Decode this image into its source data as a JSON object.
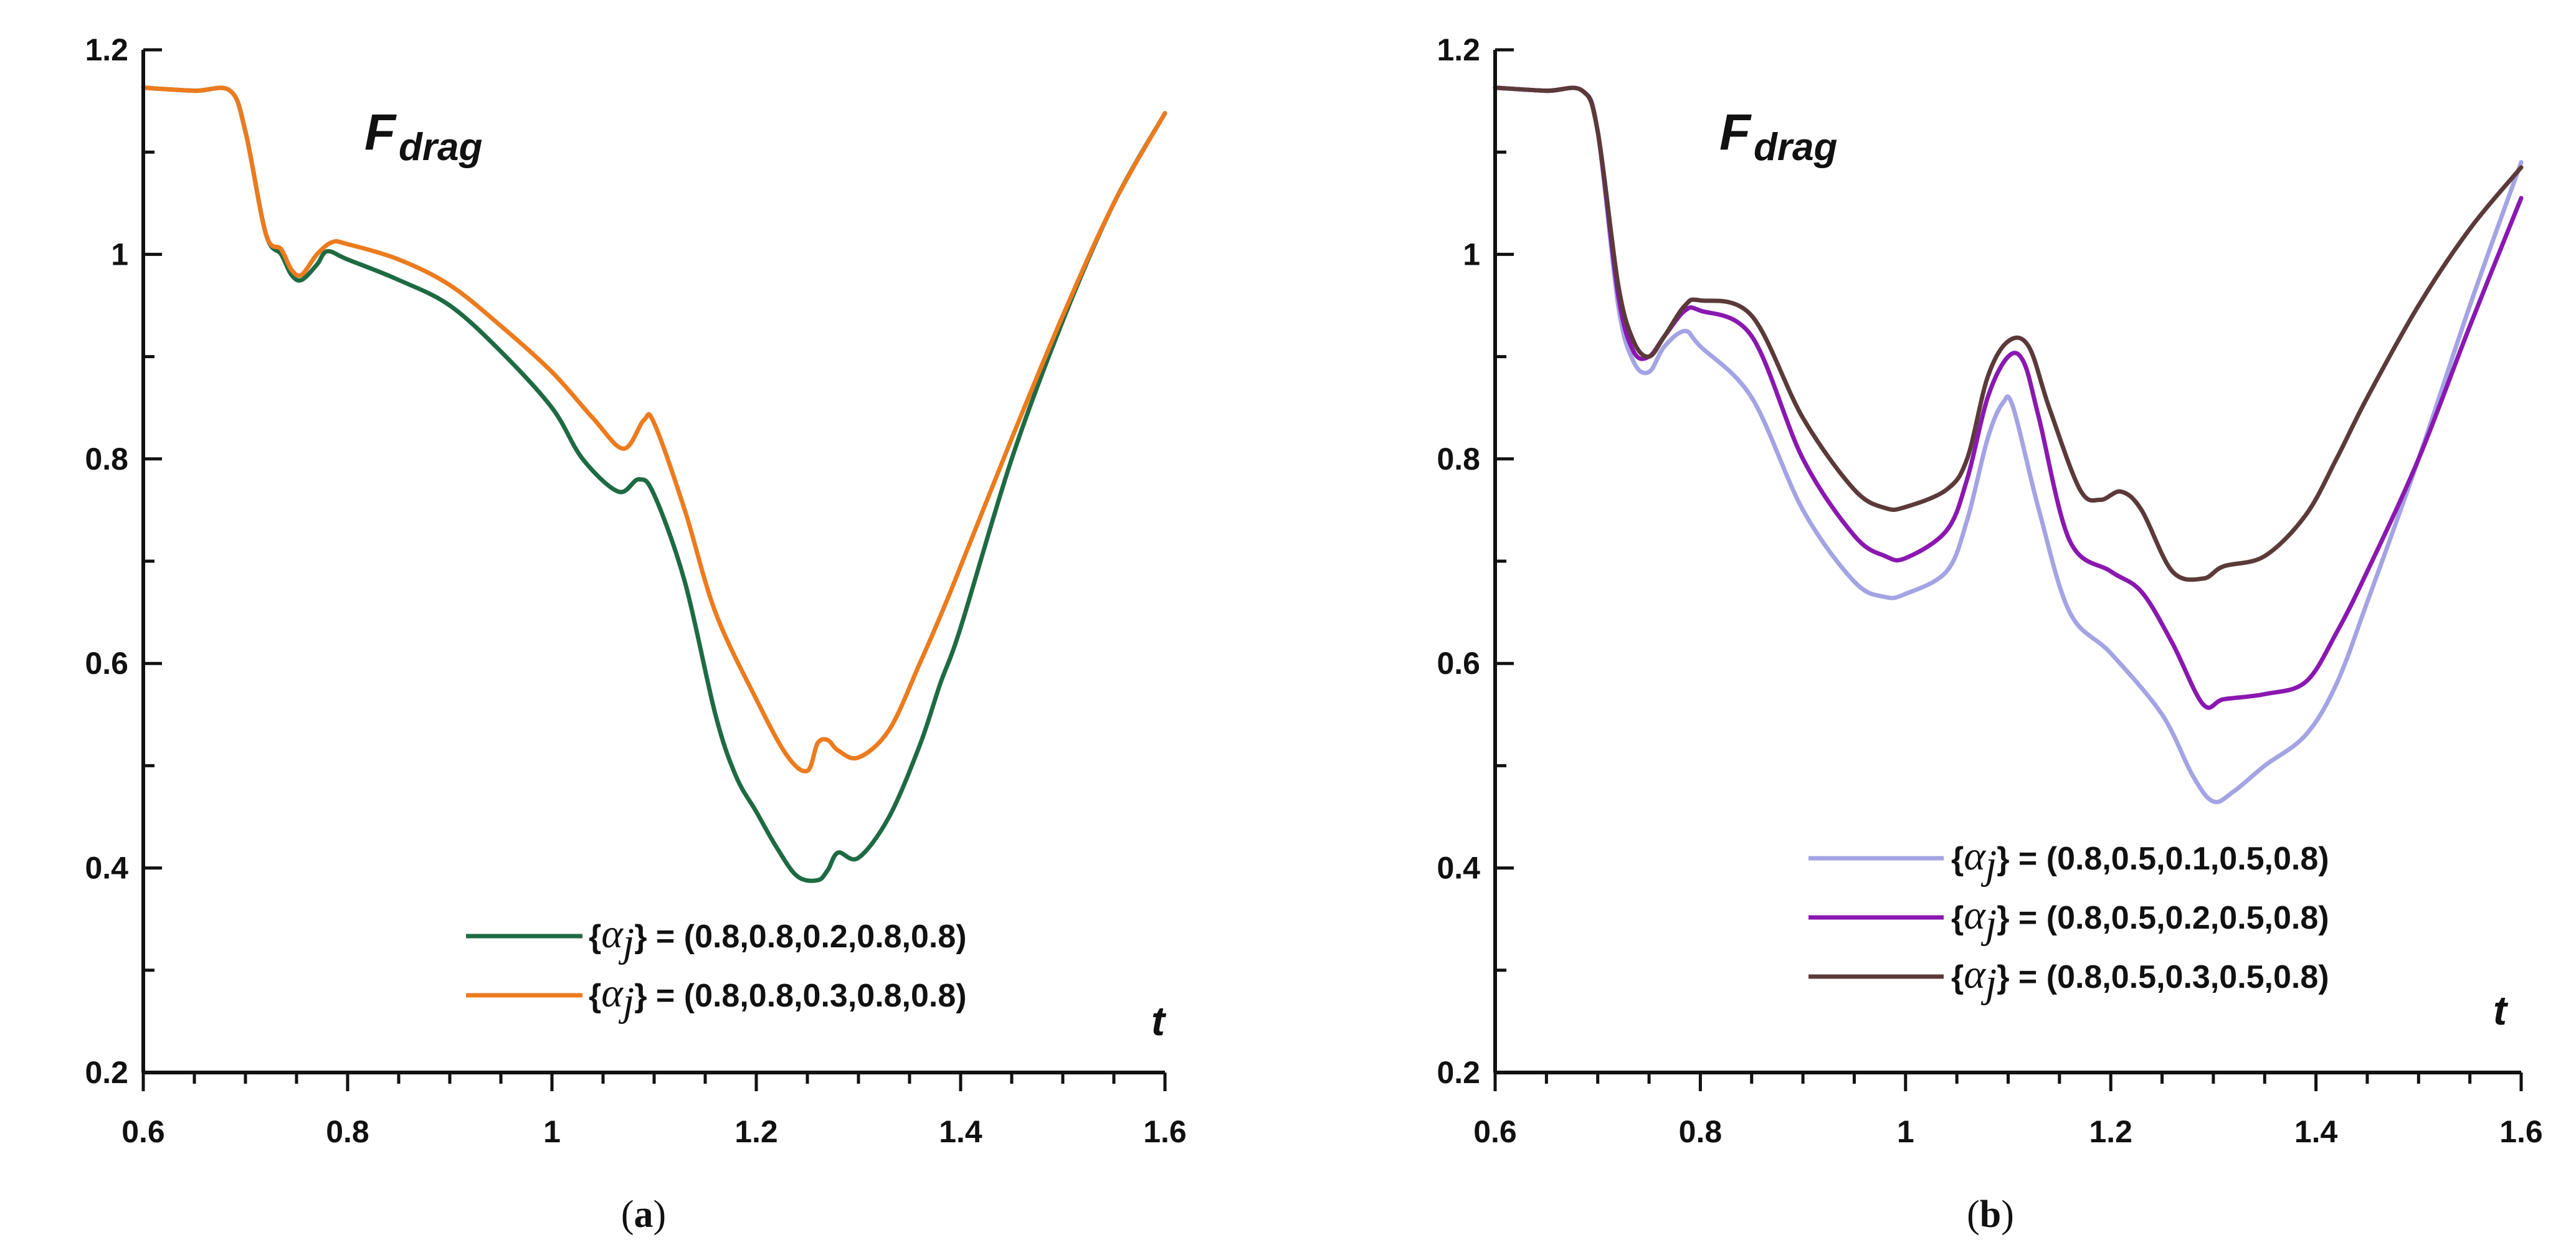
{
  "chart_data": [
    {
      "panel": "(a)",
      "panel_letter": "a",
      "type": "line",
      "title_main": "F",
      "title_sub": "drag",
      "xlabel": "t",
      "xlim": [
        0.6,
        1.6
      ],
      "ylim": [
        0.2,
        1.2
      ],
      "xticks": [
        "0.6",
        "0.8",
        "1",
        "1.2",
        "1.4",
        "1.6"
      ],
      "yticks": [
        "0.2",
        "0.4",
        "0.6",
        "0.8",
        "1",
        "1.2"
      ],
      "series": [
        {
          "name_prefix": "{",
          "name_symbol": "α",
          "name_index": "j",
          "name_suffix": "} = (0.8,0.8,0.2,0.8,0.8)",
          "color": "#1e6b43",
          "points": [
            [
              0.6,
              1.163
            ],
            [
              0.65,
              1.16
            ],
            [
              0.685,
              1.16
            ],
            [
              0.7,
              1.12
            ],
            [
              0.72,
              1.02
            ],
            [
              0.735,
              1.0
            ],
            [
              0.745,
              0.98
            ],
            [
              0.755,
              0.975
            ],
            [
              0.77,
              0.99
            ],
            [
              0.78,
              1.003
            ],
            [
              0.8,
              0.995
            ],
            [
              0.85,
              0.975
            ],
            [
              0.9,
              0.95
            ],
            [
              0.95,
              0.905
            ],
            [
              1.0,
              0.85
            ],
            [
              1.03,
              0.8
            ],
            [
              1.065,
              0.768
            ],
            [
              1.085,
              0.78
            ],
            [
              1.1,
              0.765
            ],
            [
              1.13,
              0.68
            ],
            [
              1.16,
              0.55
            ],
            [
              1.18,
              0.49
            ],
            [
              1.2,
              0.455
            ],
            [
              1.22,
              0.42
            ],
            [
              1.24,
              0.392
            ],
            [
              1.26,
              0.388
            ],
            [
              1.27,
              0.398
            ],
            [
              1.28,
              0.415
            ],
            [
              1.3,
              0.41
            ],
            [
              1.33,
              0.45
            ],
            [
              1.36,
              0.52
            ],
            [
              1.38,
              0.58
            ],
            [
              1.4,
              0.635
            ],
            [
              1.45,
              0.8
            ],
            [
              1.5,
              0.935
            ],
            [
              1.55,
              1.05
            ],
            [
              1.6,
              1.138
            ]
          ]
        },
        {
          "name_prefix": "{",
          "name_symbol": "α",
          "name_index": "j",
          "name_suffix": "} = (0.8,0.8,0.3,0.8,0.8)",
          "color": "#ec7b1e",
          "points": [
            [
              0.6,
              1.163
            ],
            [
              0.65,
              1.16
            ],
            [
              0.685,
              1.16
            ],
            [
              0.7,
              1.12
            ],
            [
              0.72,
              1.02
            ],
            [
              0.735,
              1.005
            ],
            [
              0.745,
              0.985
            ],
            [
              0.755,
              0.98
            ],
            [
              0.77,
              1.0
            ],
            [
              0.785,
              1.012
            ],
            [
              0.8,
              1.01
            ],
            [
              0.85,
              0.995
            ],
            [
              0.9,
              0.97
            ],
            [
              0.95,
              0.93
            ],
            [
              1.0,
              0.885
            ],
            [
              1.04,
              0.84
            ],
            [
              1.07,
              0.81
            ],
            [
              1.09,
              0.838
            ],
            [
              1.1,
              0.835
            ],
            [
              1.13,
              0.75
            ],
            [
              1.16,
              0.65
            ],
            [
              1.2,
              0.565
            ],
            [
              1.23,
              0.51
            ],
            [
              1.25,
              0.495
            ],
            [
              1.26,
              0.522
            ],
            [
              1.27,
              0.525
            ],
            [
              1.28,
              0.515
            ],
            [
              1.3,
              0.508
            ],
            [
              1.33,
              0.535
            ],
            [
              1.36,
              0.6
            ],
            [
              1.39,
              0.67
            ],
            [
              1.45,
              0.82
            ],
            [
              1.5,
              0.94
            ],
            [
              1.55,
              1.05
            ],
            [
              1.6,
              1.138
            ]
          ]
        }
      ]
    },
    {
      "panel": "(b)",
      "panel_letter": "b",
      "type": "line",
      "title_main": "F",
      "title_sub": "drag",
      "xlabel": "t",
      "xlim": [
        0.6,
        1.6
      ],
      "ylim": [
        0.2,
        1.2
      ],
      "xticks": [
        "0.6",
        "0.8",
        "1",
        "1.2",
        "1.4",
        "1.6"
      ],
      "yticks": [
        "0.2",
        "0.4",
        "0.6",
        "0.8",
        "1",
        "1.2"
      ],
      "series": [
        {
          "name_prefix": "{",
          "name_symbol": "α",
          "name_index": "j",
          "name_suffix": "} = (0.8,0.5,0.1,0.5,0.8)",
          "color": "#a4a3e4",
          "points": [
            [
              0.6,
              1.163
            ],
            [
              0.65,
              1.16
            ],
            [
              0.685,
              1.16
            ],
            [
              0.7,
              1.12
            ],
            [
              0.72,
              0.95
            ],
            [
              0.735,
              0.895
            ],
            [
              0.75,
              0.885
            ],
            [
              0.765,
              0.91
            ],
            [
              0.785,
              0.925
            ],
            [
              0.8,
              0.91
            ],
            [
              0.85,
              0.86
            ],
            [
              0.9,
              0.75
            ],
            [
              0.95,
              0.68
            ],
            [
              0.98,
              0.665
            ],
            [
              1.0,
              0.668
            ],
            [
              1.04,
              0.69
            ],
            [
              1.06,
              0.74
            ],
            [
              1.08,
              0.82
            ],
            [
              1.095,
              0.855
            ],
            [
              1.105,
              0.85
            ],
            [
              1.13,
              0.75
            ],
            [
              1.16,
              0.65
            ],
            [
              1.2,
              0.61
            ],
            [
              1.25,
              0.55
            ],
            [
              1.28,
              0.49
            ],
            [
              1.3,
              0.465
            ],
            [
              1.32,
              0.475
            ],
            [
              1.35,
              0.5
            ],
            [
              1.39,
              0.53
            ],
            [
              1.42,
              0.58
            ],
            [
              1.45,
              0.66
            ],
            [
              1.5,
              0.8
            ],
            [
              1.55,
              0.95
            ],
            [
              1.6,
              1.09
            ]
          ]
        },
        {
          "name_prefix": "{",
          "name_symbol": "α",
          "name_index": "j",
          "name_suffix": "} = (0.8,0.5,0.2,0.5,0.8)",
          "color": "#8a18b0",
          "points": [
            [
              0.6,
              1.163
            ],
            [
              0.65,
              1.16
            ],
            [
              0.685,
              1.16
            ],
            [
              0.7,
              1.12
            ],
            [
              0.72,
              0.96
            ],
            [
              0.735,
              0.905
            ],
            [
              0.75,
              0.9
            ],
            [
              0.765,
              0.92
            ],
            [
              0.785,
              0.945
            ],
            [
              0.8,
              0.945
            ],
            [
              0.85,
              0.92
            ],
            [
              0.9,
              0.8
            ],
            [
              0.95,
              0.725
            ],
            [
              0.98,
              0.705
            ],
            [
              1.0,
              0.703
            ],
            [
              1.04,
              0.73
            ],
            [
              1.06,
              0.78
            ],
            [
              1.08,
              0.86
            ],
            [
              1.1,
              0.9
            ],
            [
              1.115,
              0.895
            ],
            [
              1.13,
              0.84
            ],
            [
              1.16,
              0.72
            ],
            [
              1.2,
              0.69
            ],
            [
              1.23,
              0.67
            ],
            [
              1.26,
              0.62
            ],
            [
              1.29,
              0.56
            ],
            [
              1.31,
              0.565
            ],
            [
              1.35,
              0.57
            ],
            [
              1.39,
              0.582
            ],
            [
              1.42,
              0.63
            ],
            [
              1.45,
              0.69
            ],
            [
              1.5,
              0.8
            ],
            [
              1.55,
              0.93
            ],
            [
              1.6,
              1.055
            ]
          ]
        },
        {
          "name_prefix": "{",
          "name_symbol": "α",
          "name_index": "j",
          "name_suffix": "} = (0.8,0.5,0.3,0.5,0.8)",
          "color": "#5c3a3a",
          "points": [
            [
              0.6,
              1.163
            ],
            [
              0.65,
              1.16
            ],
            [
              0.685,
              1.16
            ],
            [
              0.7,
              1.12
            ],
            [
              0.72,
              0.97
            ],
            [
              0.735,
              0.915
            ],
            [
              0.75,
              0.9
            ],
            [
              0.765,
              0.92
            ],
            [
              0.785,
              0.95
            ],
            [
              0.8,
              0.955
            ],
            [
              0.85,
              0.94
            ],
            [
              0.9,
              0.84
            ],
            [
              0.95,
              0.77
            ],
            [
              0.98,
              0.752
            ],
            [
              1.0,
              0.753
            ],
            [
              1.04,
              0.77
            ],
            [
              1.06,
              0.8
            ],
            [
              1.08,
              0.88
            ],
            [
              1.1,
              0.915
            ],
            [
              1.12,
              0.91
            ],
            [
              1.14,
              0.85
            ],
            [
              1.17,
              0.77
            ],
            [
              1.19,
              0.76
            ],
            [
              1.21,
              0.768
            ],
            [
              1.23,
              0.75
            ],
            [
              1.26,
              0.69
            ],
            [
              1.29,
              0.683
            ],
            [
              1.31,
              0.695
            ],
            [
              1.35,
              0.705
            ],
            [
              1.39,
              0.745
            ],
            [
              1.42,
              0.8
            ],
            [
              1.45,
              0.86
            ],
            [
              1.5,
              0.95
            ],
            [
              1.55,
              1.025
            ],
            [
              1.6,
              1.085
            ]
          ]
        }
      ]
    }
  ]
}
